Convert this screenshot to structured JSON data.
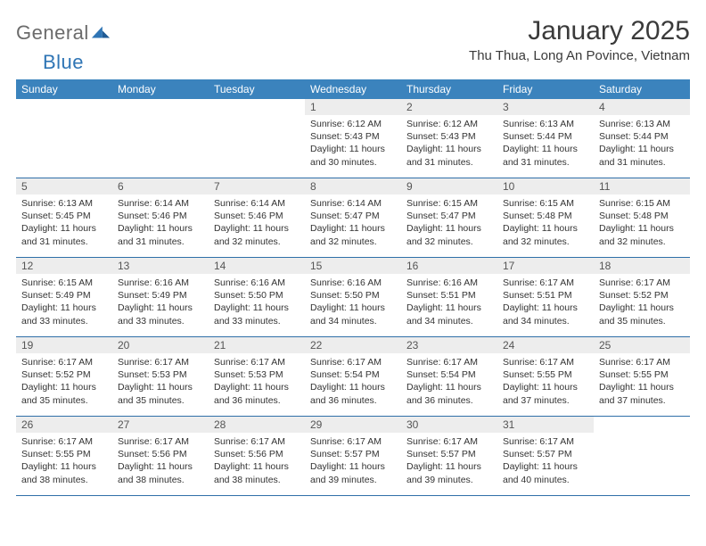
{
  "logo": {
    "general": "General",
    "blue": "Blue"
  },
  "title": "January 2025",
  "subtitle": "Thu Thua, Long An Povince, Vietnam",
  "colors": {
    "header_bg": "#3b83bd",
    "header_text": "#ffffff",
    "daynum_bg": "#ededed",
    "row_border": "#2f6fa8",
    "logo_gray": "#6b6b6b",
    "logo_blue": "#2f75b5"
  },
  "dow": [
    "Sunday",
    "Monday",
    "Tuesday",
    "Wednesday",
    "Thursday",
    "Friday",
    "Saturday"
  ],
  "weeks": [
    [
      null,
      null,
      null,
      {
        "n": "1",
        "sr": "Sunrise: 6:12 AM",
        "ss": "Sunset: 5:43 PM",
        "dl1": "Daylight: 11 hours",
        "dl2": "and 30 minutes."
      },
      {
        "n": "2",
        "sr": "Sunrise: 6:12 AM",
        "ss": "Sunset: 5:43 PM",
        "dl1": "Daylight: 11 hours",
        "dl2": "and 31 minutes."
      },
      {
        "n": "3",
        "sr": "Sunrise: 6:13 AM",
        "ss": "Sunset: 5:44 PM",
        "dl1": "Daylight: 11 hours",
        "dl2": "and 31 minutes."
      },
      {
        "n": "4",
        "sr": "Sunrise: 6:13 AM",
        "ss": "Sunset: 5:44 PM",
        "dl1": "Daylight: 11 hours",
        "dl2": "and 31 minutes."
      }
    ],
    [
      {
        "n": "5",
        "sr": "Sunrise: 6:13 AM",
        "ss": "Sunset: 5:45 PM",
        "dl1": "Daylight: 11 hours",
        "dl2": "and 31 minutes."
      },
      {
        "n": "6",
        "sr": "Sunrise: 6:14 AM",
        "ss": "Sunset: 5:46 PM",
        "dl1": "Daylight: 11 hours",
        "dl2": "and 31 minutes."
      },
      {
        "n": "7",
        "sr": "Sunrise: 6:14 AM",
        "ss": "Sunset: 5:46 PM",
        "dl1": "Daylight: 11 hours",
        "dl2": "and 32 minutes."
      },
      {
        "n": "8",
        "sr": "Sunrise: 6:14 AM",
        "ss": "Sunset: 5:47 PM",
        "dl1": "Daylight: 11 hours",
        "dl2": "and 32 minutes."
      },
      {
        "n": "9",
        "sr": "Sunrise: 6:15 AM",
        "ss": "Sunset: 5:47 PM",
        "dl1": "Daylight: 11 hours",
        "dl2": "and 32 minutes."
      },
      {
        "n": "10",
        "sr": "Sunrise: 6:15 AM",
        "ss": "Sunset: 5:48 PM",
        "dl1": "Daylight: 11 hours",
        "dl2": "and 32 minutes."
      },
      {
        "n": "11",
        "sr": "Sunrise: 6:15 AM",
        "ss": "Sunset: 5:48 PM",
        "dl1": "Daylight: 11 hours",
        "dl2": "and 32 minutes."
      }
    ],
    [
      {
        "n": "12",
        "sr": "Sunrise: 6:15 AM",
        "ss": "Sunset: 5:49 PM",
        "dl1": "Daylight: 11 hours",
        "dl2": "and 33 minutes."
      },
      {
        "n": "13",
        "sr": "Sunrise: 6:16 AM",
        "ss": "Sunset: 5:49 PM",
        "dl1": "Daylight: 11 hours",
        "dl2": "and 33 minutes."
      },
      {
        "n": "14",
        "sr": "Sunrise: 6:16 AM",
        "ss": "Sunset: 5:50 PM",
        "dl1": "Daylight: 11 hours",
        "dl2": "and 33 minutes."
      },
      {
        "n": "15",
        "sr": "Sunrise: 6:16 AM",
        "ss": "Sunset: 5:50 PM",
        "dl1": "Daylight: 11 hours",
        "dl2": "and 34 minutes."
      },
      {
        "n": "16",
        "sr": "Sunrise: 6:16 AM",
        "ss": "Sunset: 5:51 PM",
        "dl1": "Daylight: 11 hours",
        "dl2": "and 34 minutes."
      },
      {
        "n": "17",
        "sr": "Sunrise: 6:17 AM",
        "ss": "Sunset: 5:51 PM",
        "dl1": "Daylight: 11 hours",
        "dl2": "and 34 minutes."
      },
      {
        "n": "18",
        "sr": "Sunrise: 6:17 AM",
        "ss": "Sunset: 5:52 PM",
        "dl1": "Daylight: 11 hours",
        "dl2": "and 35 minutes."
      }
    ],
    [
      {
        "n": "19",
        "sr": "Sunrise: 6:17 AM",
        "ss": "Sunset: 5:52 PM",
        "dl1": "Daylight: 11 hours",
        "dl2": "and 35 minutes."
      },
      {
        "n": "20",
        "sr": "Sunrise: 6:17 AM",
        "ss": "Sunset: 5:53 PM",
        "dl1": "Daylight: 11 hours",
        "dl2": "and 35 minutes."
      },
      {
        "n": "21",
        "sr": "Sunrise: 6:17 AM",
        "ss": "Sunset: 5:53 PM",
        "dl1": "Daylight: 11 hours",
        "dl2": "and 36 minutes."
      },
      {
        "n": "22",
        "sr": "Sunrise: 6:17 AM",
        "ss": "Sunset: 5:54 PM",
        "dl1": "Daylight: 11 hours",
        "dl2": "and 36 minutes."
      },
      {
        "n": "23",
        "sr": "Sunrise: 6:17 AM",
        "ss": "Sunset: 5:54 PM",
        "dl1": "Daylight: 11 hours",
        "dl2": "and 36 minutes."
      },
      {
        "n": "24",
        "sr": "Sunrise: 6:17 AM",
        "ss": "Sunset: 5:55 PM",
        "dl1": "Daylight: 11 hours",
        "dl2": "and 37 minutes."
      },
      {
        "n": "25",
        "sr": "Sunrise: 6:17 AM",
        "ss": "Sunset: 5:55 PM",
        "dl1": "Daylight: 11 hours",
        "dl2": "and 37 minutes."
      }
    ],
    [
      {
        "n": "26",
        "sr": "Sunrise: 6:17 AM",
        "ss": "Sunset: 5:55 PM",
        "dl1": "Daylight: 11 hours",
        "dl2": "and 38 minutes."
      },
      {
        "n": "27",
        "sr": "Sunrise: 6:17 AM",
        "ss": "Sunset: 5:56 PM",
        "dl1": "Daylight: 11 hours",
        "dl2": "and 38 minutes."
      },
      {
        "n": "28",
        "sr": "Sunrise: 6:17 AM",
        "ss": "Sunset: 5:56 PM",
        "dl1": "Daylight: 11 hours",
        "dl2": "and 38 minutes."
      },
      {
        "n": "29",
        "sr": "Sunrise: 6:17 AM",
        "ss": "Sunset: 5:57 PM",
        "dl1": "Daylight: 11 hours",
        "dl2": "and 39 minutes."
      },
      {
        "n": "30",
        "sr": "Sunrise: 6:17 AM",
        "ss": "Sunset: 5:57 PM",
        "dl1": "Daylight: 11 hours",
        "dl2": "and 39 minutes."
      },
      {
        "n": "31",
        "sr": "Sunrise: 6:17 AM",
        "ss": "Sunset: 5:57 PM",
        "dl1": "Daylight: 11 hours",
        "dl2": "and 40 minutes."
      },
      null
    ]
  ]
}
